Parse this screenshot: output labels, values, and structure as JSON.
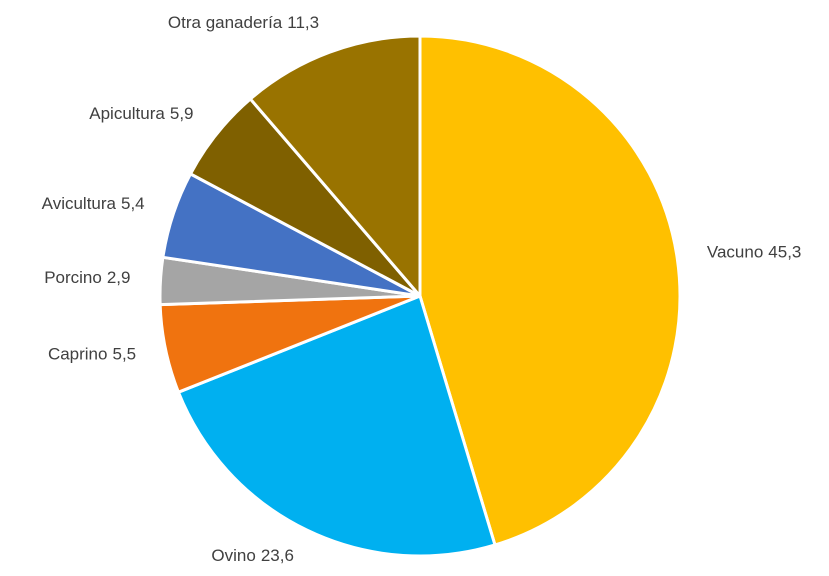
{
  "chart_data": {
    "type": "pie",
    "categories": [
      "Vacuno",
      "Ovino",
      "Caprino",
      "Porcino",
      "Avicultura",
      "Apicultura",
      "Otra ganadería"
    ],
    "values": [
      45.3,
      23.6,
      5.5,
      2.9,
      5.4,
      5.9,
      11.3
    ],
    "value_labels": [
      "45,3",
      "23,6",
      "5,5",
      "2,9",
      "5,4",
      "5,9",
      "11,3"
    ],
    "colors": [
      "#ffc000",
      "#00b0f0",
      "#f0730f",
      "#a5a5a5",
      "#4472c4",
      "#7f6000",
      "#997300"
    ]
  }
}
